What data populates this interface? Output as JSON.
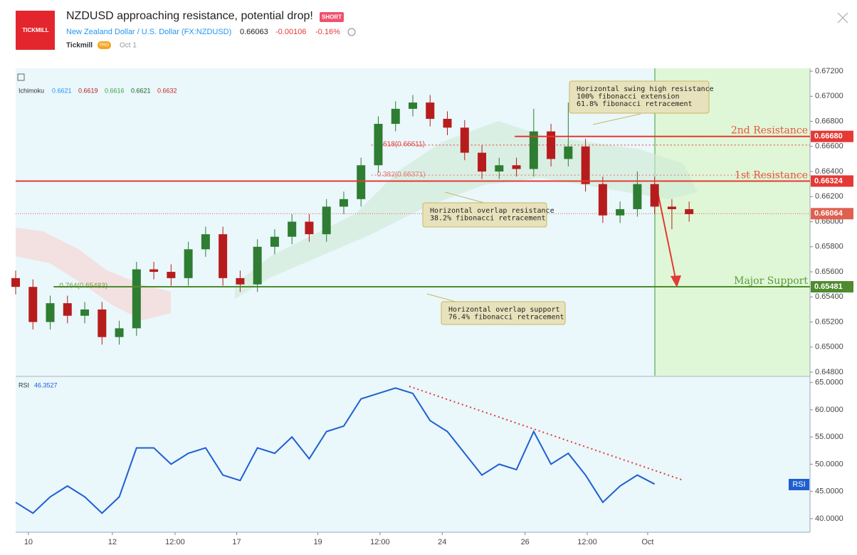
{
  "header": {
    "logo": "TICKMILL",
    "title": "NZDUSD approaching resistance, potential drop!",
    "badge": "SHORT",
    "symbol": "New Zealand Dollar / U.S. Dollar (FX:NZDUSD)",
    "price": "0.66063",
    "change": "-0.00106",
    "change_pct": "-0.16%",
    "author": "Tickmill",
    "author_badge": "PRO",
    "date": "Oct 1"
  },
  "chart_data": [
    {
      "type": "candlestick",
      "indicator": {
        "name": "Ichimoku",
        "values": [
          {
            "label": "0.6621",
            "color": "#2196f3"
          },
          {
            "label": "0.6619",
            "color": "#b71c1c"
          },
          {
            "label": "0.6616",
            "color": "#43a047"
          },
          {
            "label": "0.6621",
            "color": "#1b5e20"
          },
          {
            "label": "0.6632",
            "color": "#c62828"
          }
        ]
      },
      "up_color": "#2e7d32",
      "down_color": "#b71c1c",
      "xlim": [
        0,
        46
      ],
      "ylim": [
        0.64772,
        0.67223
      ],
      "open": [
        0.6555,
        0.6548,
        0.652,
        0.6535,
        0.6525,
        0.653,
        0.6508,
        0.6515,
        0.6562,
        0.656,
        0.6555,
        0.6578,
        0.659,
        0.6555,
        0.655,
        0.658,
        0.6588,
        0.66,
        0.659,
        0.6612,
        0.6618,
        0.6645,
        0.6678,
        0.669,
        0.6695,
        0.6682,
        0.6675,
        0.6655,
        0.664,
        0.6645,
        0.6642,
        0.6672,
        0.665,
        0.666,
        0.663,
        0.6605,
        0.661,
        0.663,
        0.6612,
        0.661
      ],
      "high": [
        0.6561,
        0.6554,
        0.6541,
        0.6541,
        0.6536,
        0.6536,
        0.6521,
        0.6568,
        0.6568,
        0.6566,
        0.6584,
        0.6596,
        0.6596,
        0.6561,
        0.6586,
        0.6594,
        0.6606,
        0.6606,
        0.6618,
        0.6624,
        0.6651,
        0.6684,
        0.6696,
        0.6701,
        0.6701,
        0.6688,
        0.6681,
        0.6661,
        0.6651,
        0.6651,
        0.669,
        0.6678,
        0.6695,
        0.6666,
        0.6636,
        0.6616,
        0.664,
        0.6636,
        0.6618,
        0.6616
      ],
      "low": [
        0.6542,
        0.6514,
        0.6514,
        0.6519,
        0.6519,
        0.6502,
        0.6502,
        0.6509,
        0.6554,
        0.6549,
        0.6549,
        0.6572,
        0.6549,
        0.6544,
        0.6544,
        0.6574,
        0.6582,
        0.6584,
        0.6584,
        0.6606,
        0.6612,
        0.6639,
        0.6672,
        0.6684,
        0.6676,
        0.6669,
        0.6649,
        0.6634,
        0.6634,
        0.6636,
        0.6636,
        0.6644,
        0.6644,
        0.6624,
        0.6599,
        0.6599,
        0.6604,
        0.6606,
        0.6594,
        0.66
      ],
      "close": [
        0.6548,
        0.652,
        0.6535,
        0.6525,
        0.653,
        0.6508,
        0.6515,
        0.6562,
        0.656,
        0.6555,
        0.6578,
        0.659,
        0.6555,
        0.655,
        0.658,
        0.6588,
        0.66,
        0.659,
        0.6612,
        0.6618,
        0.6645,
        0.6678,
        0.669,
        0.6695,
        0.6682,
        0.6675,
        0.6655,
        0.664,
        0.6645,
        0.6642,
        0.6672,
        0.665,
        0.666,
        0.663,
        0.6605,
        0.661,
        0.663,
        0.6612,
        0.661,
        0.6606
      ],
      "yticks": [
        {
          "value": 0.648,
          "label": "0.64800"
        },
        {
          "value": 0.65,
          "label": "0.65000"
        },
        {
          "value": 0.652,
          "label": "0.65200"
        },
        {
          "value": 0.654,
          "label": "0.65400"
        },
        {
          "value": 0.656,
          "label": "0.65600"
        },
        {
          "value": 0.658,
          "label": "0.65800"
        },
        {
          "value": 0.66,
          "label": "0.66000"
        },
        {
          "value": 0.662,
          "label": "0.66200"
        },
        {
          "value": 0.664,
          "label": "0.66400"
        },
        {
          "value": 0.666,
          "label": "0.66600"
        },
        {
          "value": 0.668,
          "label": "0.66800"
        },
        {
          "value": 0.67,
          "label": "0.67000"
        },
        {
          "value": 0.672,
          "label": "0.67200"
        }
      ],
      "xticks": [
        {
          "value": 0.74,
          "label": "10"
        },
        {
          "value": 5.6,
          "label": "12"
        },
        {
          "value": 9.23,
          "label": "12:00"
        },
        {
          "value": 12.8,
          "label": "17"
        },
        {
          "value": 17.5,
          "label": "19"
        },
        {
          "value": 21.1,
          "label": "12:00"
        },
        {
          "value": 24.7,
          "label": "24"
        },
        {
          "value": 29.5,
          "label": "26"
        },
        {
          "value": 33.1,
          "label": "12:00"
        },
        {
          "value": 36.6,
          "label": "Oct"
        }
      ],
      "levels": [
        {
          "name": "2nd Resistance",
          "value": 0.6668,
          "label": "0.66680",
          "color": "#e53935",
          "text_color": "#e8553c",
          "from": 28.9
        },
        {
          "name": "1st Resistance",
          "value": 0.66324,
          "label": "0.66324",
          "color": "#e53935",
          "text_color": "#e8553c",
          "from": 0
        },
        {
          "name": "Major Support",
          "value": 0.65481,
          "label": "0.65481",
          "color": "#4e8a2e",
          "text_color": "#5b9b3c",
          "from": 2.2
        }
      ],
      "current": {
        "value": 0.66064,
        "label": "0.66064",
        "color": "#e06050"
      },
      "fib_levels": [
        {
          "label": "0.618(0.66611)",
          "value": 0.66611,
          "color": "#e53935",
          "from": 20.6
        },
        {
          "label": "0.382(0.66371)",
          "value": 0.66371,
          "color": "#e57373",
          "from": 20.6
        },
        {
          "label": "0.764(0.65483)",
          "value": 0.65483,
          "color": "#7a9a3c",
          "from": 2.2
        }
      ],
      "annotations": [
        {
          "lines": [
            "Horizontal swing high resistance",
            "100% fibonacci extension",
            "61.8% fibonacci retracement"
          ]
        },
        {
          "lines": [
            "Horizontal overlap resistance",
            "38.2% fibonacci retracement"
          ]
        },
        {
          "lines": [
            "Horizontal overlap support",
            "76.4% fibonacci retracement"
          ]
        }
      ]
    },
    {
      "type": "line",
      "title": "RSI",
      "last": "46.3527",
      "color": "#1e5fd0",
      "xlim": [
        0,
        46
      ],
      "ylim": [
        37.5,
        66
      ],
      "values": [
        43,
        41,
        44,
        46,
        44,
        41,
        44,
        53,
        53,
        50,
        52,
        53,
        48,
        47,
        53,
        52,
        55,
        51,
        56,
        57,
        62,
        63,
        64,
        63,
        58,
        56,
        52,
        48,
        50,
        49,
        56,
        50,
        52,
        48,
        43,
        46,
        48,
        46.35,
        null,
        null
      ],
      "yticks": [
        {
          "value": 40,
          "label": "40.0000"
        },
        {
          "value": 45,
          "label": "45.0000"
        },
        {
          "value": 50,
          "label": "50.0000"
        },
        {
          "value": 55,
          "label": "55.0000"
        },
        {
          "value": 60,
          "label": "60.0000"
        },
        {
          "value": 65,
          "label": "65.0000"
        }
      ]
    }
  ]
}
